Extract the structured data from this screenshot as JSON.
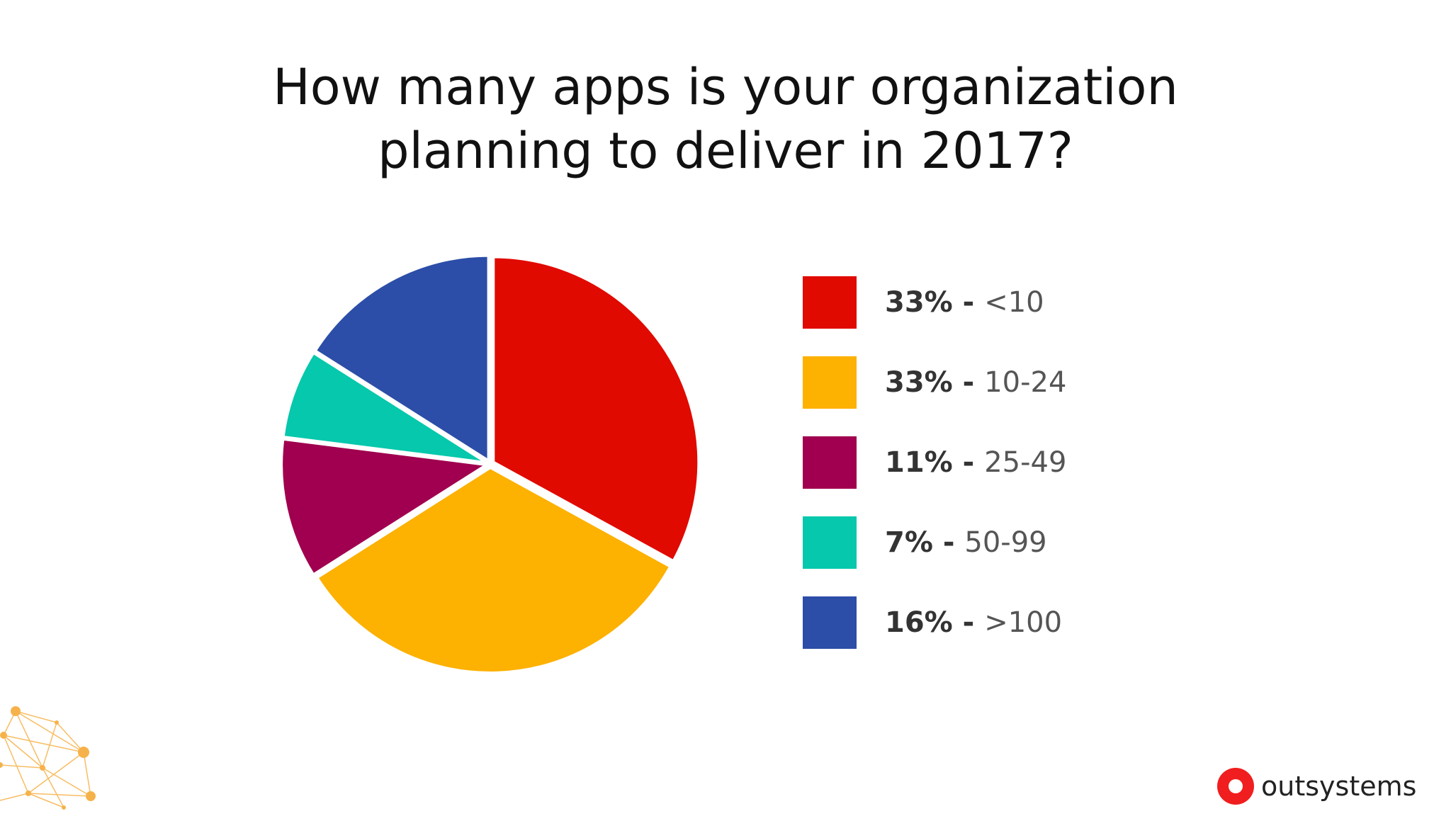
{
  "title_lines": [
    "How many apps is your organization",
    "planning to deliver in 2017?"
  ],
  "chart_data": {
    "type": "pie",
    "title": "How many apps is your organization planning to deliver in 2017?",
    "categories": [
      "<10",
      "10-24",
      "25-49",
      "50-99",
      ">100"
    ],
    "values": [
      33,
      33,
      11,
      7,
      16
    ],
    "value_labels": [
      "33%",
      "33%",
      "11%",
      "7%",
      "16%"
    ],
    "colors": [
      "#e00a00",
      "#fdb100",
      "#a0004f",
      "#05c8ac",
      "#2c4ea8"
    ],
    "start_angle_deg": 0,
    "direction": "clockwise",
    "legend": "right",
    "legend_entries": [
      {
        "pct": "33%",
        "sep": " - ",
        "range": "<10",
        "color": "#e00a00"
      },
      {
        "pct": "33%",
        "sep": " - ",
        "range": "10-24",
        "color": "#fdb100"
      },
      {
        "pct": "11%",
        "sep": " - ",
        "range": "25-49",
        "color": "#a0004f"
      },
      {
        "pct": "7%",
        "sep": " - ",
        "range": "50-99",
        "color": "#05c8ac"
      },
      {
        "pct": "16%",
        "sep": " - ",
        "range": ">100",
        "color": "#2c4ea8"
      }
    ]
  },
  "brand": {
    "name": "outsystems",
    "color": "#f01e1e"
  }
}
